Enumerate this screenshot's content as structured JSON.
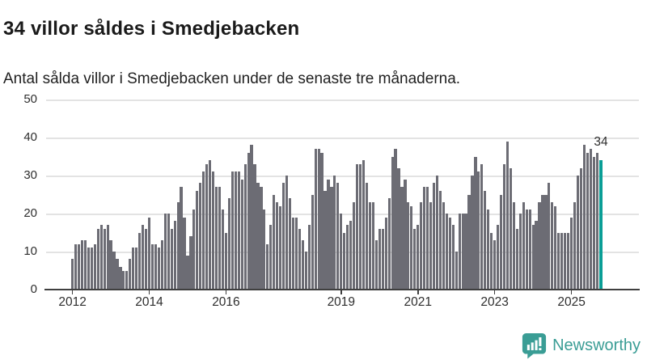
{
  "header": {
    "title": "34 villor såldes i Smedjebacken",
    "subtitle": "Antal sålda villor i Smedjebacken under de senaste tre månaderna."
  },
  "annotation": {
    "last_value_label": "34"
  },
  "branding": {
    "logo_text": "Newsworthy",
    "logo_icon": "bar-chart-speech-bubble-icon"
  },
  "colors": {
    "bar": "#6c6c74",
    "highlight": "#0a9e96",
    "logo": "#3a9d95",
    "gridline": "#e3e3e3",
    "axis": "#3f3f3f"
  },
  "chart_data": {
    "type": "bar",
    "title": "34 villor såldes i Smedjebacken",
    "subtitle": "Antal sålda villor i Smedjebacken under de senaste tre månaderna.",
    "unit": "antal sålda villor (rullande tre månader)",
    "start_month": "2012-01",
    "end_month": "2025-10",
    "ylim": [
      0,
      50
    ],
    "y_ticks": [
      0,
      10,
      20,
      30,
      40,
      50
    ],
    "grid": true,
    "x_tick_labels": [
      "2012",
      "2014",
      "2016",
      "2019",
      "2021",
      "2023",
      "2025"
    ],
    "x_tick_month_indices": [
      0,
      24,
      48,
      84,
      108,
      132,
      156
    ],
    "highlight_last_bar": true,
    "last_value": 34,
    "values": [
      8,
      12,
      12,
      13,
      13,
      11,
      11,
      12,
      16,
      17,
      16,
      17,
      13,
      10,
      8,
      6,
      5,
      5,
      8,
      11,
      11,
      15,
      17,
      16,
      19,
      12,
      12,
      11,
      13,
      20,
      20,
      16,
      18,
      23,
      27,
      19,
      9,
      14,
      21,
      26,
      28,
      31,
      33,
      34,
      31,
      27,
      27,
      21,
      15,
      24,
      31,
      31,
      31,
      29,
      33,
      36,
      38,
      33,
      28,
      27,
      21,
      12,
      17,
      25,
      23,
      22,
      28,
      30,
      24,
      19,
      19,
      16,
      13,
      10,
      17,
      25,
      37,
      37,
      36,
      26,
      29,
      27,
      30,
      28,
      20,
      15,
      17,
      18,
      23,
      33,
      33,
      34,
      28,
      23,
      23,
      13,
      16,
      16,
      19,
      24,
      35,
      37,
      32,
      27,
      29,
      23,
      22,
      16,
      17,
      23,
      27,
      27,
      23,
      28,
      30,
      26,
      23,
      20,
      19,
      17,
      10,
      20,
      20,
      20,
      25,
      30,
      35,
      31,
      33,
      26,
      21,
      15,
      13,
      17,
      25,
      33,
      39,
      32,
      23,
      16,
      20,
      23,
      21,
      21,
      17,
      18,
      23,
      25,
      25,
      28,
      23,
      22,
      15,
      15,
      15,
      15,
      19,
      23,
      30,
      32,
      38,
      36,
      37,
      35,
      36,
      34
    ]
  }
}
